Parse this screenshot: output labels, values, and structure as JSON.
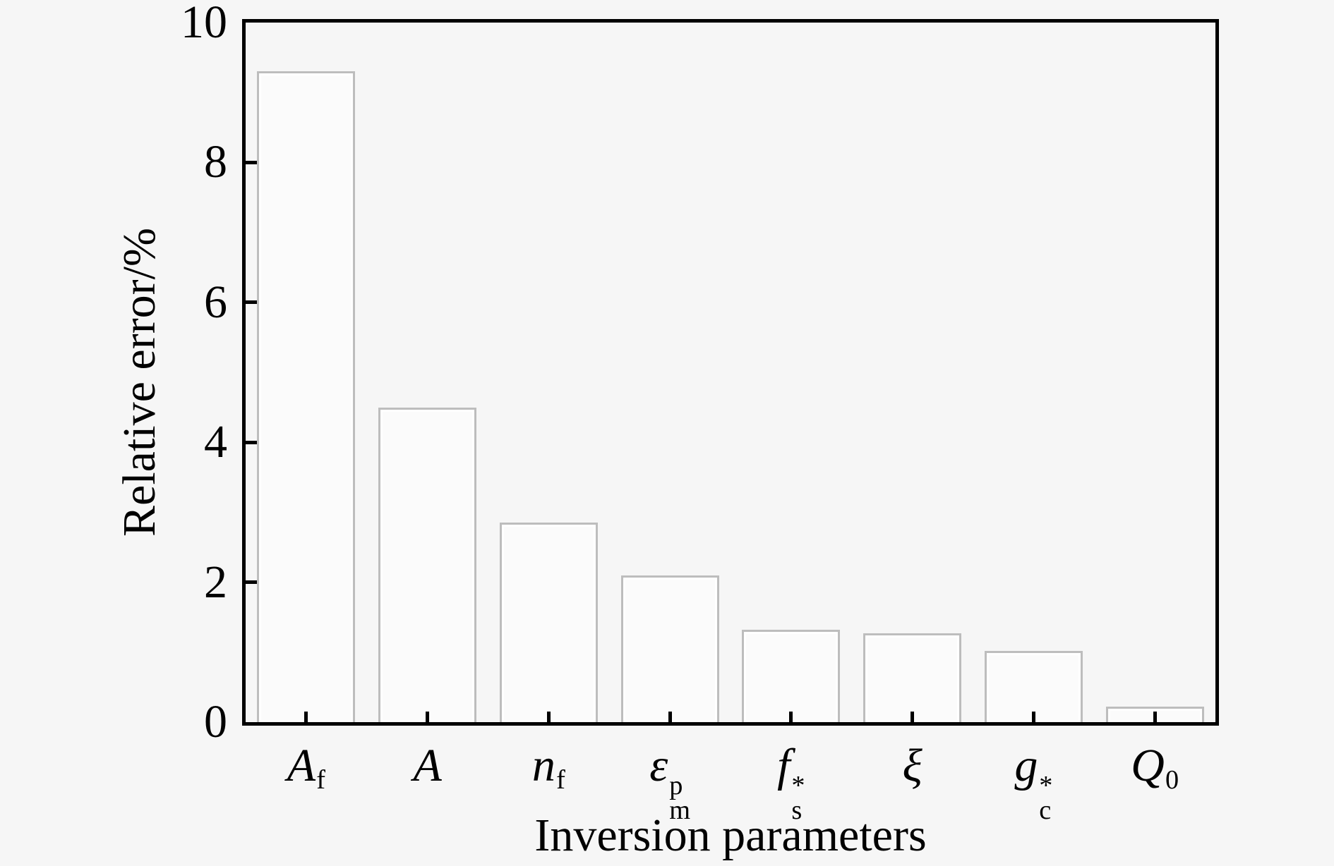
{
  "figure": {
    "background": "#f6f6f6",
    "frame_color": "#000000"
  },
  "chart_data": {
    "type": "bar",
    "title": "",
    "xlabel": "Inversion parameters",
    "ylabel": "Relative error/%",
    "ylim": [
      0,
      10
    ],
    "yticks": [
      0,
      2,
      4,
      6,
      8,
      10
    ],
    "grid": false,
    "legend": null,
    "bar_fill": "#fbfbfb",
    "bar_edge": "#bdbdbd",
    "categories": [
      "Af",
      "A",
      "nf",
      "emp",
      "fs*",
      "xi",
      "gc*",
      "Q0"
    ],
    "category_labels": [
      {
        "base": "A",
        "sub": "f",
        "sup": ""
      },
      {
        "base": "A",
        "sub": "",
        "sup": ""
      },
      {
        "base": "n",
        "sub": "f",
        "sup": ""
      },
      {
        "base": "ε",
        "sub": "m",
        "sup": "p"
      },
      {
        "base": "f",
        "sub": "s",
        "sup": "*"
      },
      {
        "base": "ξ",
        "sub": "",
        "sup": ""
      },
      {
        "base": "g",
        "sub": "c",
        "sup": "*"
      },
      {
        "base": "Q",
        "sub": "0",
        "sup": ""
      }
    ],
    "values": [
      9.3,
      4.5,
      2.85,
      2.1,
      1.32,
      1.27,
      1.02,
      0.22
    ]
  }
}
